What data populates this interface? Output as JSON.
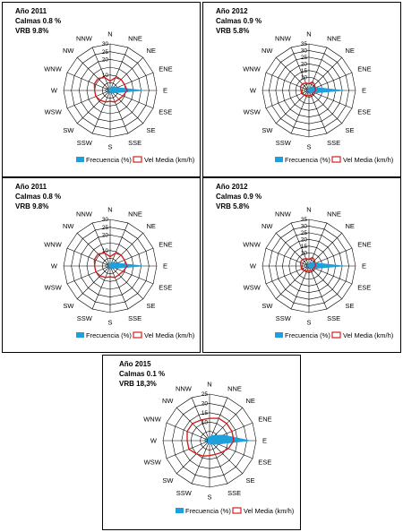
{
  "directions": [
    "N",
    "NNE",
    "NE",
    "ENE",
    "E",
    "ESE",
    "SE",
    "SSE",
    "S",
    "SSW",
    "SW",
    "WSW",
    "W",
    "WNW",
    "NW",
    "NNW"
  ],
  "legend": {
    "freq": "Frecuencia (%)",
    "vel": "Vel Media (km/h)"
  },
  "colors": {
    "freq": "#1ea0dc",
    "vel": "#d42020",
    "grid": "#000000"
  },
  "chart_data": [
    {
      "type": "radar",
      "header": [
        "Año 2011",
        "Calmas 0.8 %",
        "VRB 9.8%"
      ],
      "rmax": 30,
      "ticks": [
        0,
        5,
        10,
        15,
        20,
        25,
        30
      ],
      "tick_labels": [
        "0",
        "",
        "10",
        "",
        "20",
        "25",
        "30"
      ],
      "series": [
        {
          "name": "Frecuencia (%)",
          "values": [
            1.5,
            2.5,
            3.5,
            5,
            22,
            4,
            2.5,
            1.5,
            1,
            1,
            1,
            1.5,
            1.5,
            1.5,
            1.5,
            1.5
          ]
        },
        {
          "name": "Vel Media (km/h)",
          "values": [
            6,
            9,
            10,
            10,
            11,
            9,
            8,
            8,
            7,
            8,
            9,
            10,
            10,
            11,
            11,
            9
          ]
        }
      ]
    },
    {
      "type": "radar",
      "header": [
        "Año 2012",
        "Calmas 0.9 %",
        "VRB 5.8%"
      ],
      "rmax": 35,
      "ticks": [
        0,
        5,
        10,
        15,
        20,
        25,
        30,
        35
      ],
      "tick_labels": [
        "0",
        "",
        "10",
        "15",
        "20",
        "25",
        "30",
        "35"
      ],
      "series": [
        {
          "name": "Frecuencia (%)",
          "values": [
            1.5,
            2.5,
            4,
            6,
            27,
            5,
            2.5,
            1.5,
            1,
            1,
            1,
            1.5,
            1.5,
            1.5,
            1.5,
            1.5
          ]
        },
        {
          "name": "Vel Media (km/h)",
          "values": [
            5,
            7,
            6,
            5,
            5,
            4,
            4,
            4,
            4,
            4,
            5,
            6,
            6,
            7,
            7,
            6
          ]
        }
      ]
    },
    {
      "type": "radar",
      "header": [
        "Año 2011",
        "Calmas 0.8 %",
        "VRB 9.8%"
      ],
      "rmax": 30,
      "ticks": [
        0,
        5,
        10,
        15,
        20,
        25,
        30
      ],
      "tick_labels": [
        "0",
        "",
        "10",
        "",
        "20",
        "25",
        "30"
      ],
      "series": [
        {
          "name": "Frecuencia (%)",
          "values": [
            1.5,
            2.5,
            3.5,
            5,
            22,
            4,
            2.5,
            1.5,
            1,
            1,
            1,
            1.5,
            1.5,
            1.5,
            1.5,
            1.5
          ]
        },
        {
          "name": "Vel Media (km/h)",
          "values": [
            6,
            9,
            10,
            10,
            11,
            9,
            8,
            8,
            7,
            8,
            9,
            10,
            10,
            11,
            11,
            9
          ]
        }
      ]
    },
    {
      "type": "radar",
      "header": [
        "Año 2012",
        "Calmas 0.9 %",
        "VRB 5.8%"
      ],
      "rmax": 35,
      "ticks": [
        0,
        5,
        10,
        15,
        20,
        25,
        30,
        35
      ],
      "tick_labels": [
        "0",
        "",
        "10",
        "15",
        "20",
        "25",
        "30",
        "35"
      ],
      "series": [
        {
          "name": "Frecuencia (%)",
          "values": [
            1.5,
            2.5,
            4,
            6,
            27,
            5,
            2.5,
            1.5,
            1,
            1,
            1,
            1.5,
            1.5,
            1.5,
            1.5,
            1.5
          ]
        },
        {
          "name": "Vel Media (km/h)",
          "values": [
            5,
            7,
            6,
            5,
            5,
            4,
            4,
            4,
            4,
            4,
            5,
            6,
            6,
            7,
            7,
            6
          ]
        }
      ]
    },
    {
      "type": "radar",
      "header": [
        "Año 2015",
        "Calmas 0.1 %",
        "VRB 18,3%"
      ],
      "rmax": 25,
      "ticks": [
        0,
        5,
        10,
        15,
        20,
        25
      ],
      "tick_labels": [
        "0",
        "",
        "10",
        "15",
        "20",
        "25"
      ],
      "series": [
        {
          "name": "Frecuencia (%)",
          "values": [
            2,
            3,
            4,
            8,
            22,
            5,
            3,
            2,
            1.5,
            1.5,
            1.5,
            2,
            2,
            2,
            2,
            2
          ]
        },
        {
          "name": "Vel Media (km/h)",
          "values": [
            12,
            13,
            13,
            13,
            13,
            11,
            9,
            8,
            8,
            9,
            10,
            12,
            12,
            13,
            13,
            12
          ]
        }
      ]
    }
  ]
}
